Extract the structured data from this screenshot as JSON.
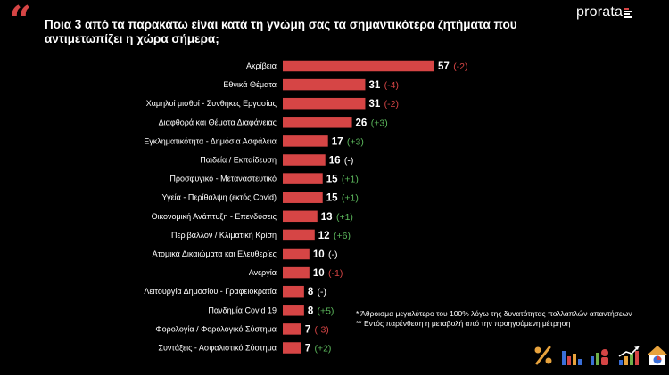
{
  "header": {
    "question": "Ποια 3 από τα παρακάτω είναι κατά τη γνώμη σας τα σημαντικότερα ζητήματα που αντιμετωπίζει η χώρα σήμερα;",
    "logo_text": "prorata"
  },
  "colors": {
    "bar": "#d64545",
    "negative_change": "#d64545",
    "positive_change": "#5cb85c",
    "neutral_change": "#ffffff",
    "background": "#000000"
  },
  "chart_data": {
    "type": "bar",
    "orientation": "horizontal",
    "categories": [
      "Ακρίβεια",
      "Εθνικά Θέματα",
      "Χαμηλοί μισθοί - Συνθήκες Εργασίας",
      "Διαφθορά και Θέματα Διαφάνειας",
      "Εγκληματικότητα - Δημόσια Ασφάλεια",
      "Παιδεία / Εκπαίδευση",
      "Προσφυγικό - Μεταναστευτικό",
      "Υγεία  - Περίθαλψη (εκτός Covid)",
      "Οικονομική Ανάπτυξη - Επενδύσεις",
      "Περιβάλλον / Κλιματική Κρίση",
      "Ατομικά Δικαιώματα και Ελευθερίες",
      "Ανεργία",
      "Λειτουργία Δημοσίου - Γραφειοκρατία",
      "Πανδημία Covid 19",
      "Φορολογία / Φορολογικό Σύστημα",
      "Συντάξεις - Ασφαλιστικό Σύστημα"
    ],
    "values": [
      57,
      31,
      31,
      26,
      17,
      16,
      15,
      15,
      13,
      12,
      10,
      10,
      8,
      8,
      7,
      7
    ],
    "changes": [
      "(-2)",
      "(-4)",
      "(-2)",
      "(+3)",
      "(+3)",
      "(-)",
      "(+1)",
      "(+1)",
      "(+1)",
      "(+6)",
      "(-)",
      "(-1)",
      "(-)",
      "(+5)",
      "(-3)",
      "(+2)"
    ],
    "xlim": [
      0,
      57
    ],
    "grid": false,
    "legend": "none"
  },
  "footnotes": [
    "* Άθροισμα μεγαλύτερο του 100% λόγω της δυνατότητας πολλαπλών απαντήσεων",
    "** Εντός παρένθεση η μεταβολή από την προηγούμενη μέτρηση"
  ],
  "icons": [
    "percent-icon",
    "bar-chart-icon",
    "bar-chart-people-icon",
    "trend-chart-icon",
    "home-chart-icon"
  ]
}
